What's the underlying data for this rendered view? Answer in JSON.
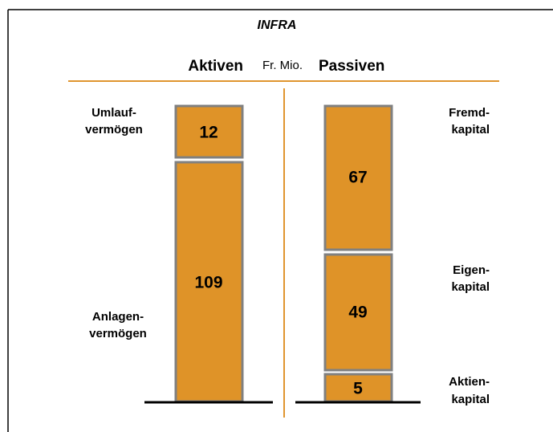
{
  "title": "INFRA",
  "header": {
    "left": "Aktiven",
    "unit": "Fr. Mio.",
    "right": "Passiven"
  },
  "assets": [
    {
      "label": [
        "Umlauf-",
        "vermögen"
      ],
      "value": 12
    },
    {
      "label": [
        "Anlagen-",
        "vermögen"
      ],
      "value": 109
    }
  ],
  "liabilities": [
    {
      "label": [
        "Fremd-",
        "kapital"
      ],
      "value": 67
    },
    {
      "label": [
        "Eigen-",
        "kapital"
      ],
      "value": 49
    },
    {
      "label": [
        "Aktien-",
        "kapital"
      ],
      "value": 5
    }
  ]
}
